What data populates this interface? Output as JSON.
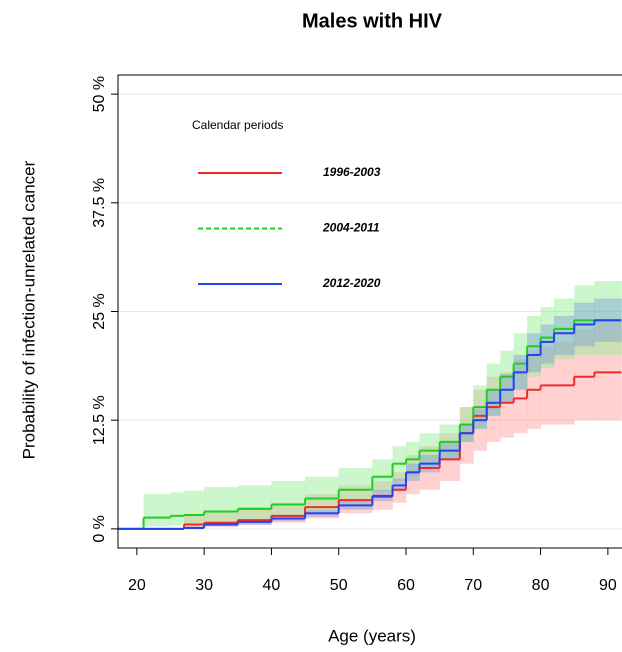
{
  "chart_data": {
    "type": "step",
    "title": "Males with HIV",
    "x_label": "Age (years)",
    "y_label": "Probability of infection-unrelated cancer",
    "legend_title": "Calendar periods",
    "x": [
      17,
      21,
      25,
      27,
      30,
      35,
      40,
      45,
      50,
      55,
      58,
      60,
      62,
      65,
      68,
      70,
      72,
      74,
      76,
      78,
      80,
      82,
      85,
      88,
      92
    ],
    "xlim": [
      17.2,
      92.1
    ],
    "xticks": [
      20,
      30,
      40,
      50,
      60,
      70,
      80,
      90
    ],
    "ylim": [
      -2.2,
      52.2
    ],
    "yticks": [
      {
        "value": 0,
        "label": "0 %"
      },
      {
        "value": 12.5,
        "label": "12.5 %"
      },
      {
        "value": 25,
        "label": "25 %"
      },
      {
        "value": 37.5,
        "label": "37.5 %"
      },
      {
        "value": 50,
        "label": "50 %"
      }
    ],
    "grid": true,
    "series": [
      {
        "name": "1996-2003",
        "color": "#ee2a2a",
        "band_color": "#ff9a9a",
        "values": [
          0,
          0,
          0,
          0.5,
          0.7,
          1,
          1.5,
          2.5,
          3.3,
          3.7,
          4.5,
          6.5,
          7,
          8,
          11,
          13,
          14,
          14.5,
          15,
          16,
          16.5,
          16.5,
          17.5,
          18,
          18
        ],
        "lower": [
          0,
          0,
          0,
          0.1,
          0.2,
          0.4,
          0.7,
          1.2,
          1.8,
          2.2,
          3,
          4,
          4.5,
          5.5,
          7.5,
          9,
          10,
          10.5,
          11,
          11.5,
          12,
          12,
          12.5,
          12.5,
          12.5
        ],
        "upper": [
          0,
          0,
          0,
          1.5,
          2,
          2.5,
          3,
          4,
          5,
          5.5,
          6.5,
          8.5,
          9.5,
          11,
          14,
          16,
          17.5,
          18,
          19.5,
          20.5,
          21,
          21.5,
          23,
          24,
          24
        ]
      },
      {
        "name": "2004-2011",
        "color": "#22cc22",
        "band_color": "#8fee8f",
        "legend_dash": "5,3",
        "values": [
          0,
          1.3,
          1.5,
          1.6,
          2,
          2.3,
          2.8,
          3.5,
          4.5,
          6,
          7.5,
          8,
          9,
          10,
          12,
          14,
          16,
          17.5,
          19,
          21,
          22,
          23,
          24,
          24,
          24
        ],
        "lower": [
          0,
          0.3,
          0.4,
          0.5,
          0.8,
          1,
          1.4,
          2,
          3,
          4.2,
          5.5,
          6,
          7,
          8,
          10,
          11.5,
          13,
          14.5,
          16,
          17.5,
          18.5,
          19.5,
          20,
          20,
          20
        ],
        "upper": [
          0,
          4,
          4.2,
          4.4,
          4.8,
          5,
          5.5,
          6,
          7,
          8,
          9.5,
          10,
          11,
          12,
          14,
          16.5,
          19,
          20.5,
          22.5,
          24.5,
          25.5,
          26.5,
          28,
          28.5,
          28.5
        ]
      },
      {
        "name": "2012-2020",
        "color": "#2244ee",
        "band_color": "#7a9fd8",
        "values": [
          0,
          0,
          0,
          0.1,
          0.5,
          0.8,
          1.2,
          1.8,
          2.7,
          3.8,
          5,
          6.5,
          7.5,
          9,
          11,
          12.5,
          14.5,
          16,
          18,
          20,
          21.5,
          22.5,
          23.5,
          24,
          24
        ],
        "lower": [
          0,
          0,
          0,
          0,
          0.3,
          0.5,
          0.9,
          1.4,
          2.2,
          3.2,
          4.3,
          5.5,
          6.5,
          8,
          10,
          11.5,
          13,
          14.5,
          16,
          18,
          19,
          20,
          21,
          21.5,
          21.5
        ],
        "upper": [
          0,
          0,
          0,
          0.3,
          0.7,
          1.1,
          1.5,
          2.2,
          3.2,
          4.5,
          5.8,
          7.5,
          8.5,
          10,
          12,
          13.8,
          16,
          17.8,
          20,
          22.5,
          23.5,
          24.5,
          26,
          26.5,
          26.5
        ]
      }
    ]
  }
}
